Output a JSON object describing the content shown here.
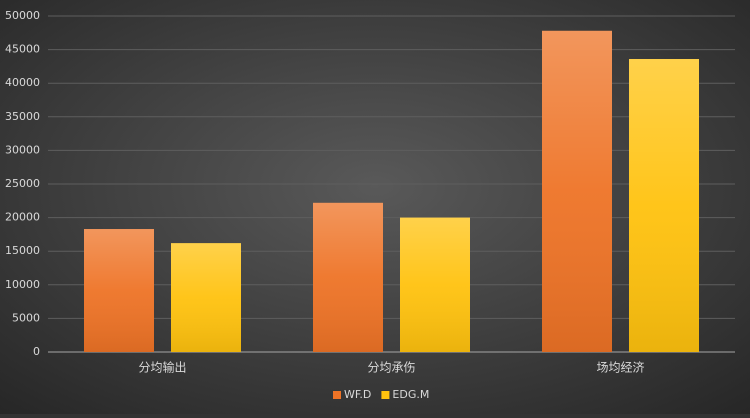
{
  "chart_data": {
    "type": "bar",
    "categories": [
      "分均输出",
      "分均承伤",
      "场均经济"
    ],
    "series": [
      {
        "name": "WF.D",
        "color": "#ee7326",
        "values": [
          18300,
          22200,
          47800
        ]
      },
      {
        "name": "EDG.M",
        "color": "#ffc20e",
        "values": [
          16200,
          20000,
          43600
        ]
      }
    ],
    "ylim": [
      0,
      50000
    ],
    "yticks": [
      0,
      5000,
      10000,
      15000,
      20000,
      25000,
      30000,
      35000,
      40000,
      45000,
      50000
    ],
    "grid": true,
    "legend": "bottom"
  }
}
